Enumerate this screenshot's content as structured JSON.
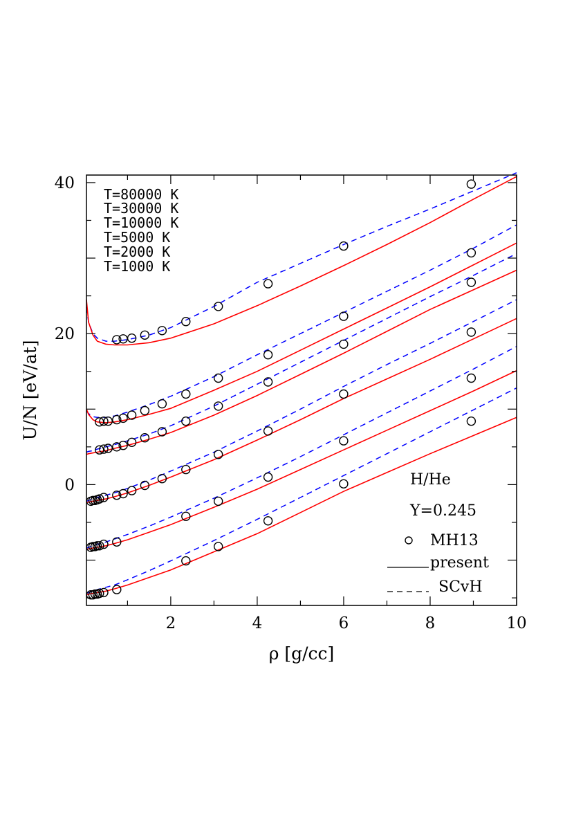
{
  "chart_data": {
    "type": "line",
    "xlabel": "ρ [g/cc]",
    "ylabel": "U/N [eV/at]",
    "xlim": [
      0.05,
      10
    ],
    "ylim": [
      -16,
      41
    ],
    "xticks": [
      2,
      4,
      6,
      8,
      10
    ],
    "yticks": [
      0,
      20,
      40
    ],
    "colors": {
      "present": "#ff0000",
      "SCvH": "#0000ff",
      "MH13": "#000000"
    },
    "temperature_labels": [
      "T=80000 K",
      "T=30000 K",
      "T=10000 K",
      "T=5000 K",
      "T=2000 K",
      "T=1000 K"
    ],
    "annotations": [
      "H/He",
      "Y=0.245"
    ],
    "legend": {
      "placement": "bottom-right",
      "entries": [
        "MH13",
        "present",
        "SCvH"
      ]
    },
    "series": [
      {
        "temperature": "T=80000 K",
        "present": {
          "x": [
            0.05,
            0.1,
            0.2,
            0.3,
            0.5,
            0.7,
            1,
            1.5,
            2,
            3,
            4,
            5,
            6,
            7,
            8,
            9,
            10
          ],
          "y": [
            24.5,
            21.5,
            19.8,
            19.0,
            18.6,
            18.5,
            18.5,
            18.8,
            19.4,
            21.3,
            23.7,
            26.3,
            29.0,
            31.8,
            34.7,
            37.8,
            40.8
          ]
        },
        "SCvH": {
          "x": [
            0.05,
            0.1,
            0.2,
            0.3,
            0.5,
            0.7,
            1,
            1.5,
            2,
            3,
            4,
            5,
            6,
            7,
            8,
            9,
            10
          ],
          "y": [
            23.5,
            21.5,
            20.0,
            19.4,
            19.0,
            19.0,
            19.2,
            19.8,
            20.8,
            23.6,
            26.8,
            29.3,
            31.8,
            34.2,
            36.5,
            38.9,
            41.3
          ]
        },
        "MH13": {
          "x": [
            0.75,
            0.9,
            1.1,
            1.4,
            1.8,
            2.35,
            3.1,
            4.25,
            6.0,
            8.95
          ],
          "y": [
            19.2,
            19.3,
            19.4,
            19.8,
            20.4,
            21.6,
            23.6,
            26.6,
            31.6,
            39.8
          ]
        }
      },
      {
        "temperature": "T=30000 K",
        "present": {
          "x": [
            0.05,
            0.1,
            0.2,
            0.3,
            0.5,
            0.7,
            1,
            1.5,
            2,
            3,
            4,
            5,
            6,
            7,
            8,
            9,
            10
          ],
          "y": [
            10.0,
            9.3,
            8.6,
            8.3,
            8.2,
            8.3,
            8.6,
            9.3,
            10.1,
            12.5,
            15.0,
            17.8,
            20.6,
            23.4,
            26.2,
            29.1,
            32.0
          ]
        },
        "SCvH": {
          "x": [
            0.05,
            0.1,
            0.2,
            0.3,
            0.5,
            0.7,
            1,
            1.5,
            2,
            3,
            4,
            5,
            6,
            7,
            8,
            9,
            10
          ],
          "y": [
            9.8,
            9.4,
            9.0,
            8.9,
            8.9,
            9.1,
            9.6,
            10.6,
            11.7,
            14.3,
            17.2,
            20.0,
            22.8,
            25.6,
            28.4,
            31.3,
            34.4
          ]
        },
        "MH13": {
          "x": [
            0.35,
            0.45,
            0.55,
            0.75,
            0.9,
            1.1,
            1.4,
            1.8,
            2.35,
            3.1,
            4.25,
            6.0,
            8.95
          ],
          "y": [
            8.3,
            8.4,
            8.4,
            8.6,
            8.8,
            9.2,
            9.8,
            10.7,
            12.0,
            14.1,
            17.2,
            22.3,
            30.7
          ]
        }
      },
      {
        "temperature": "T=10000 K",
        "present": {
          "x": [
            0.05,
            0.1,
            0.2,
            0.3,
            0.5,
            0.7,
            1,
            1.5,
            2,
            3,
            4,
            5,
            6,
            7,
            8,
            9,
            10
          ],
          "y": [
            4.0,
            4.1,
            4.2,
            4.3,
            4.5,
            4.8,
            5.2,
            6.0,
            6.9,
            9.2,
            11.8,
            14.6,
            17.4,
            20.3,
            23.2,
            25.8,
            28.4
          ]
        },
        "SCvH": {
          "x": [
            0.05,
            0.1,
            0.2,
            0.3,
            0.5,
            0.7,
            1,
            1.5,
            2,
            3,
            4,
            5,
            6,
            7,
            8,
            9,
            10
          ],
          "y": [
            4.3,
            4.4,
            4.5,
            4.7,
            5.0,
            5.3,
            5.8,
            6.7,
            7.8,
            10.4,
            13.3,
            16.2,
            19.1,
            22.0,
            24.9,
            27.7,
            30.6
          ]
        },
        "MH13": {
          "x": [
            0.35,
            0.45,
            0.55,
            0.75,
            0.9,
            1.1,
            1.4,
            1.8,
            2.35,
            3.1,
            4.25,
            6.0,
            8.95
          ],
          "y": [
            4.6,
            4.7,
            4.8,
            5.0,
            5.2,
            5.6,
            6.2,
            7.0,
            8.4,
            10.4,
            13.6,
            18.6,
            26.8
          ]
        }
      },
      {
        "temperature": "T=5000 K",
        "present": {
          "x": [
            0.05,
            0.1,
            0.2,
            0.3,
            0.5,
            0.7,
            1,
            1.5,
            2,
            3,
            4,
            5,
            6,
            7,
            8,
            9,
            10
          ],
          "y": [
            -2.4,
            -2.3,
            -2.2,
            -2.1,
            -1.9,
            -1.6,
            -1.1,
            -0.1,
            1.0,
            3.3,
            5.9,
            8.6,
            11.4,
            14.0,
            16.6,
            19.3,
            22.0
          ]
        },
        "SCvH": {
          "x": [
            0.05,
            0.1,
            0.2,
            0.3,
            0.5,
            0.7,
            1,
            1.5,
            2,
            3,
            4,
            5,
            6,
            7,
            8,
            9,
            10
          ],
          "y": [
            -2.2,
            -2.1,
            -1.9,
            -1.7,
            -1.4,
            -1.1,
            -0.5,
            0.6,
            1.8,
            4.3,
            7.1,
            10.0,
            13.0,
            15.9,
            18.7,
            21.6,
            24.5
          ]
        },
        "MH13": {
          "x": [
            0.15,
            0.2,
            0.25,
            0.3,
            0.35,
            0.45,
            0.75,
            0.9,
            1.1,
            1.4,
            1.8,
            2.35,
            3.1,
            4.25,
            6.0,
            8.95
          ],
          "y": [
            -2.2,
            -2.1,
            -2.1,
            -2.0,
            -1.9,
            -1.7,
            -1.4,
            -1.2,
            -0.8,
            -0.1,
            0.8,
            2.0,
            4.0,
            7.1,
            12.0,
            20.2
          ]
        }
      },
      {
        "temperature": "T=2000 K",
        "present": {
          "x": [
            0.05,
            0.1,
            0.2,
            0.3,
            0.5,
            0.7,
            1,
            1.5,
            2,
            3,
            4,
            5,
            6,
            7,
            8,
            9,
            10
          ],
          "y": [
            -8.6,
            -8.5,
            -8.4,
            -8.3,
            -8.1,
            -7.8,
            -7.3,
            -6.3,
            -5.3,
            -3.0,
            -0.6,
            2.0,
            4.6,
            7.2,
            9.8,
            12.4,
            15.1
          ]
        },
        "SCvH": {
          "x": [
            0.05,
            0.1,
            0.2,
            0.3,
            0.5,
            0.7,
            1,
            1.5,
            2,
            3,
            4,
            5,
            6,
            7,
            8,
            9,
            10
          ],
          "y": [
            -8.4,
            -8.3,
            -8.1,
            -7.9,
            -7.6,
            -7.2,
            -6.6,
            -5.5,
            -4.3,
            -1.8,
            0.9,
            3.7,
            6.6,
            9.5,
            12.4,
            15.3,
            18.3
          ]
        },
        "MH13": {
          "x": [
            0.15,
            0.2,
            0.25,
            0.3,
            0.35,
            0.45,
            0.75,
            2.35,
            3.1,
            4.25,
            6.0,
            8.95
          ],
          "y": [
            -8.3,
            -8.2,
            -8.2,
            -8.1,
            -8.1,
            -7.9,
            -7.6,
            -4.2,
            -2.2,
            1.0,
            5.8,
            14.1
          ]
        }
      },
      {
        "temperature": "T=1000 K",
        "present": {
          "x": [
            0.05,
            0.1,
            0.2,
            0.3,
            0.5,
            0.7,
            1,
            1.5,
            2,
            3,
            4,
            5,
            6,
            7,
            8,
            9,
            10
          ],
          "y": [
            -14.6,
            -14.5,
            -14.4,
            -14.3,
            -14.1,
            -13.8,
            -13.3,
            -12.3,
            -11.3,
            -8.9,
            -6.5,
            -3.7,
            -0.9,
            1.6,
            4.1,
            6.5,
            8.9
          ]
        },
        "SCvH": {
          "x": [
            0.05,
            0.1,
            0.2,
            0.3,
            0.5,
            0.7,
            1,
            1.5,
            2,
            3,
            4,
            5,
            6,
            7,
            8,
            9,
            10
          ],
          "y": [
            -14.4,
            -14.3,
            -14.1,
            -13.9,
            -13.6,
            -13.3,
            -12.6,
            -11.4,
            -10.1,
            -7.4,
            -4.6,
            -1.7,
            1.2,
            4.1,
            7.0,
            9.9,
            12.8
          ]
        },
        "MH13": {
          "x": [
            0.15,
            0.2,
            0.25,
            0.3,
            0.35,
            0.45,
            0.75,
            2.35,
            3.1,
            4.25,
            6.0,
            8.95
          ],
          "y": [
            -14.6,
            -14.6,
            -14.5,
            -14.5,
            -14.4,
            -14.3,
            -13.9,
            -10.1,
            -8.2,
            -4.8,
            0.1,
            8.4
          ]
        }
      }
    ]
  }
}
